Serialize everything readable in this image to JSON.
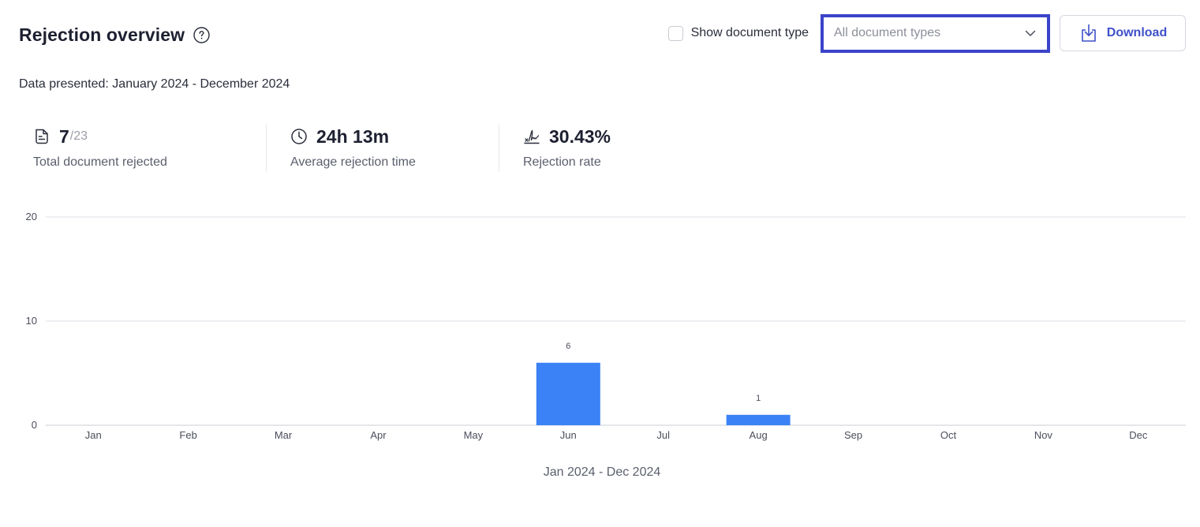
{
  "header": {
    "title": "Rejection overview",
    "help_icon": "question-circle-icon"
  },
  "controls": {
    "show_document_type_label": "Show document type",
    "show_document_type_checked": false,
    "document_type_select": "All document types",
    "download_label": "Download",
    "download_icon": "download-tray-icon"
  },
  "date_range_text": "Data presented: January 2024 - December 2024",
  "stats": {
    "rejected": {
      "value": "7",
      "total": "/23",
      "label": "Total document rejected",
      "icon": "document-icon"
    },
    "avg_time": {
      "value": "24h 13m",
      "label": "Average rejection time",
      "icon": "clock-icon"
    },
    "rate": {
      "value": "30.43%",
      "label": "Rejection rate",
      "icon": "signature-icon"
    }
  },
  "colors": {
    "bar": "#3b82f6",
    "accent": "#3f51c9",
    "focus_border": "#3b44c9"
  },
  "chart_data": {
    "type": "bar",
    "categories": [
      "Jan",
      "Feb",
      "Mar",
      "Apr",
      "May",
      "Jun",
      "Jul",
      "Aug",
      "Sep",
      "Oct",
      "Nov",
      "Dec"
    ],
    "values": [
      0,
      0,
      0,
      0,
      0,
      6,
      0,
      1,
      0,
      0,
      0,
      0
    ],
    "yticks": [
      0,
      10,
      20
    ],
    "ylim": [
      0,
      20
    ],
    "xlabel": "Jan 2024 - Dec 2024",
    "ylabel": "",
    "grid": true,
    "show_data_labels": true
  }
}
